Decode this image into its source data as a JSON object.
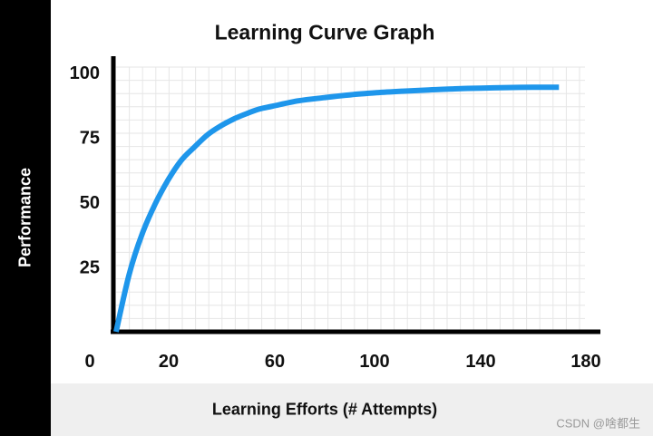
{
  "chart_data": {
    "type": "line",
    "title": "Learning Curve Graph",
    "xlabel": "Learning Efforts (# Attempts)",
    "ylabel": "Performance",
    "xlim": [
      0,
      180
    ],
    "ylim": [
      0,
      100
    ],
    "x_ticks": [
      {
        "value": 0,
        "label": "0"
      },
      {
        "value": 20,
        "label": "20"
      },
      {
        "value": 60,
        "label": "60"
      },
      {
        "value": 100,
        "label": "100"
      },
      {
        "value": 140,
        "label": "140"
      },
      {
        "value": 180,
        "label": "180"
      }
    ],
    "y_ticks": [
      {
        "value": 25,
        "label": "25"
      },
      {
        "value": 50,
        "label": "50"
      },
      {
        "value": 75,
        "label": "75"
      },
      {
        "value": 100,
        "label": "100"
      }
    ],
    "grid": true,
    "series": [
      {
        "color": "#1e96eb",
        "x": [
          0,
          5,
          10,
          15,
          20,
          25,
          30,
          35,
          40,
          45,
          50,
          55,
          60,
          70,
          80,
          90,
          100,
          110,
          120,
          130,
          140,
          150,
          160,
          170
        ],
        "y": [
          0,
          22.1,
          37.7,
          49.3,
          58.6,
          66.1,
          71.2,
          75.9,
          79.3,
          82.0,
          84.1,
          85.9,
          87.0,
          89.1,
          90.3,
          91.4,
          92.2,
          92.8,
          93.3,
          93.7,
          94.0,
          94.2,
          94.3,
          94.3
        ]
      }
    ]
  },
  "watermark": "CSDN @啥都生"
}
